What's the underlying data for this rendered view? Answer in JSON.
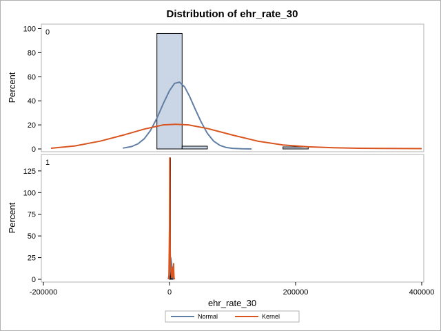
{
  "chart_data": {
    "type": "histogram",
    "title": "Distribution of ehr_rate_30",
    "xlabel": "ehr_rate_30",
    "x_ticks": [
      -200000,
      0,
      200000,
      400000
    ],
    "x_tick_labels": [
      "-200000",
      "0",
      "200000",
      "400000"
    ],
    "xlim": [
      -200000,
      400000
    ],
    "legend": {
      "placement": "bottom-center",
      "entries": [
        "Normal",
        "Kernel"
      ]
    },
    "colors": {
      "bar_fill": "#cad5e5",
      "bar_stroke": "#000000",
      "normal": "#5f7ea3",
      "kernel": "#d9541e",
      "frame": "#b0b0b0"
    },
    "panels": [
      {
        "label": "0",
        "ylabel": "Percent",
        "ylim": [
          0,
          102
        ],
        "y_ticks": [
          0,
          20,
          40,
          60,
          80,
          100
        ],
        "bins": [
          {
            "x0": -20000,
            "x1": 20000,
            "percent": 96
          },
          {
            "x0": 20000,
            "x1": 60000,
            "percent": 2.3
          },
          {
            "x0": 180000,
            "x1": 220000,
            "percent": 1.7
          }
        ],
        "normal_curve": {
          "x": [
            -74000,
            -60000,
            -50000,
            -40000,
            -30000,
            -20000,
            -10000,
            0,
            8000,
            16000,
            24000,
            32000,
            40000,
            50000,
            60000,
            70000,
            80000,
            90000,
            100000,
            115000,
            130000
          ],
          "percent": [
            0.7,
            2.0,
            4.3,
            8.5,
            15.5,
            25.5,
            37.5,
            48.5,
            54.5,
            55.5,
            51.5,
            43.5,
            34.0,
            22.5,
            13.0,
            6.5,
            3.0,
            1.2,
            0.5,
            0.1,
            0.0
          ]
        },
        "kernel_curve": {
          "x": [
            -188000,
            -150000,
            -110000,
            -70000,
            -40000,
            -10000,
            10000,
            30000,
            60000,
            100000,
            140000,
            180000,
            220000,
            260000,
            300000,
            340000,
            400000
          ],
          "percent": [
            0.6,
            2.5,
            6.5,
            12.0,
            16.5,
            20.0,
            20.5,
            20.0,
            17.0,
            11.5,
            6.5,
            3.3,
            1.8,
            1.0,
            0.6,
            0.4,
            0.3
          ]
        }
      },
      {
        "label": "1",
        "ylabel": "Percent",
        "ylim": [
          0,
          140
        ],
        "y_ticks": [
          0,
          25,
          50,
          75,
          100,
          125
        ],
        "bins": [
          {
            "x0": 0,
            "x1": 1500,
            "percent": 140
          },
          {
            "x0": 1500,
            "x1": 3000,
            "percent": 3
          },
          {
            "x0": 4000,
            "x1": 5500,
            "percent": 7
          }
        ],
        "normal_curve": {
          "x": [
            -2000,
            0,
            1000,
            2000,
            3000,
            4000,
            5000,
            6000,
            8000
          ],
          "percent": [
            0,
            8,
            22,
            25,
            20,
            12,
            6,
            2,
            0
          ]
        },
        "kernel_curve": {
          "x": [
            -1000,
            0,
            300,
            600,
            1000,
            1500,
            2000,
            2800,
            3600,
            4200,
            4800,
            5200,
            5600,
            6000,
            6400,
            6800,
            7200,
            8000
          ],
          "percent": [
            0,
            60,
            140,
            90,
            40,
            15,
            10,
            5,
            2,
            12,
            14,
            8,
            4,
            3,
            18,
            8,
            2,
            0
          ]
        }
      }
    ]
  }
}
